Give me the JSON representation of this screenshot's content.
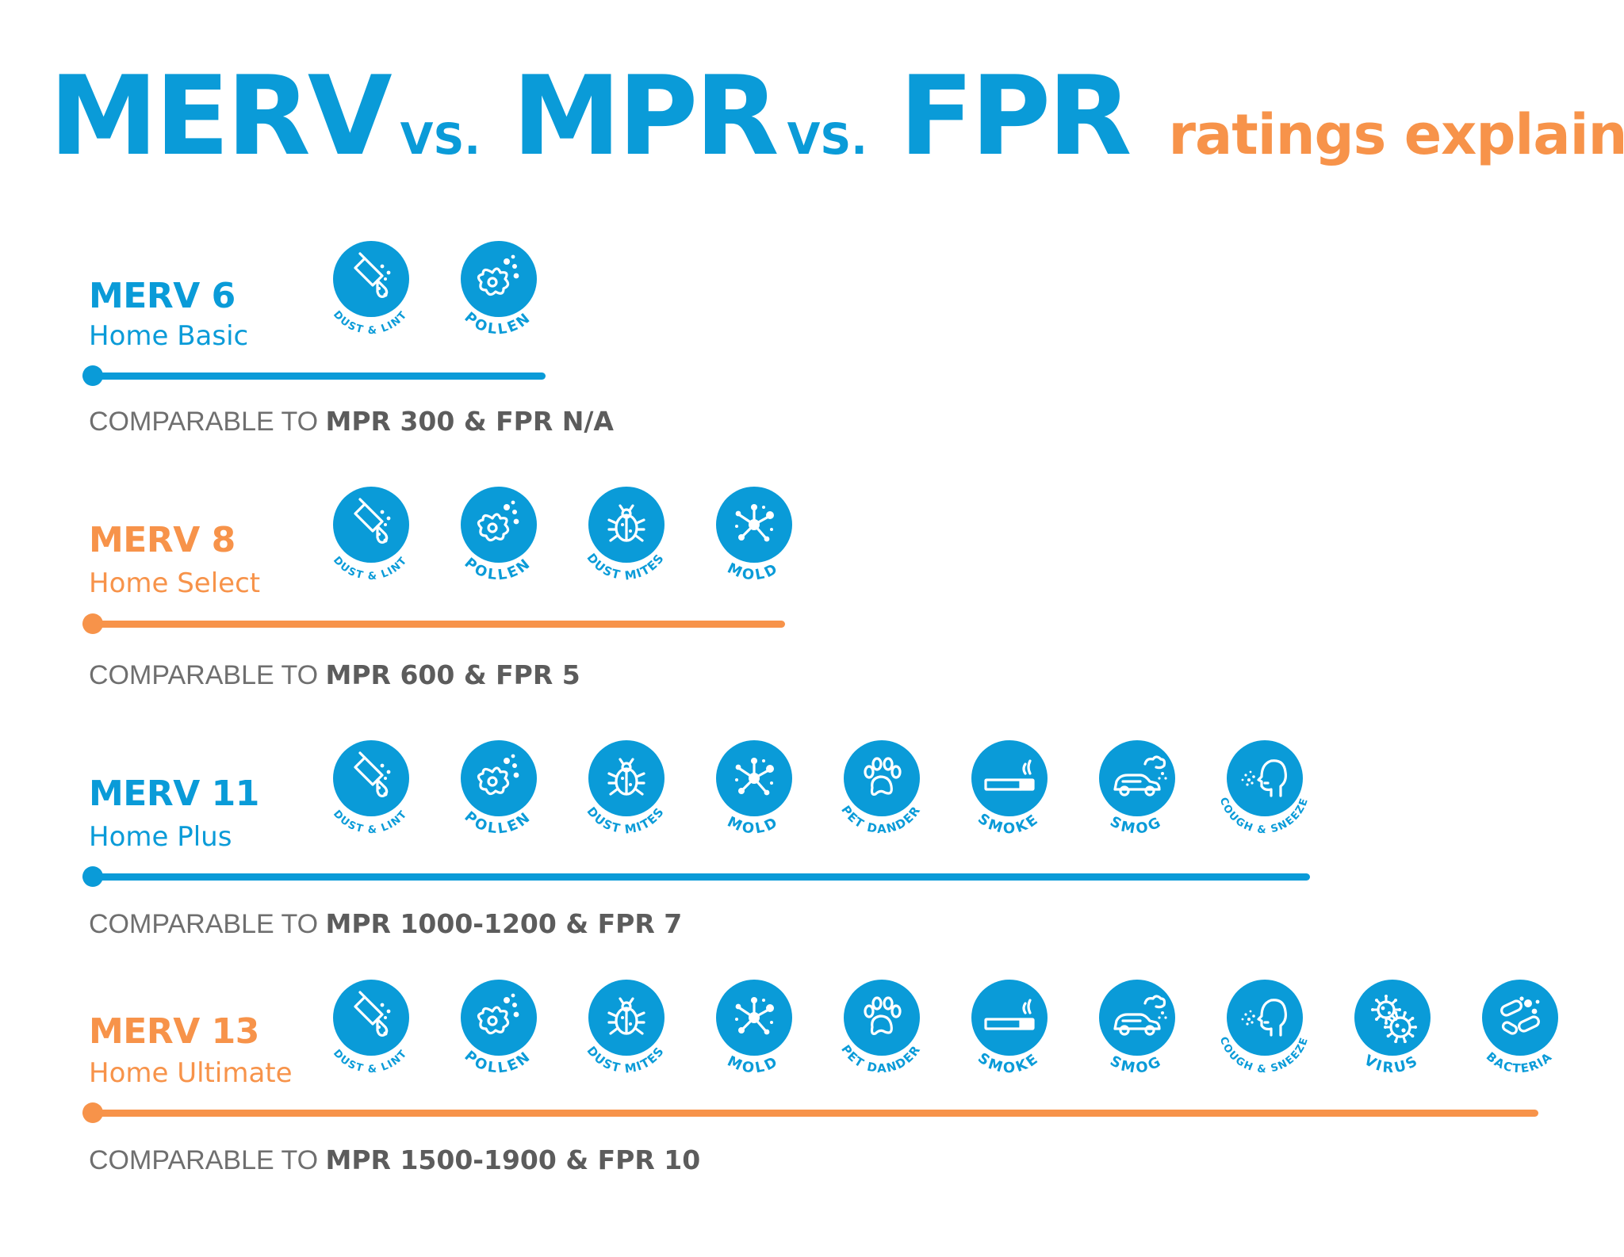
{
  "colors": {
    "blue": "#0a9bd8",
    "orange": "#f7934a",
    "gray": "#6f6f6f"
  },
  "title": {
    "word1": "MERV",
    "vs1": "VS.",
    "word2": "MPR",
    "vs2": "VS.",
    "word3": "FPR",
    "subtitle": "ratings explained"
  },
  "tiers": [
    {
      "name": "MERV 6",
      "label": "Home Basic",
      "color": "blue",
      "comparable_prefix": "COMPARABLE TO ",
      "comparable_value": "MPR 300 & FPR N/A",
      "icons": [
        {
          "icon": "dust-lint-icon",
          "label": "DUST & LINT"
        },
        {
          "icon": "pollen-icon",
          "label": "POLLEN"
        }
      ]
    },
    {
      "name": "MERV 8",
      "label": "Home Select",
      "color": "orange",
      "comparable_prefix": "COMPARABLE TO ",
      "comparable_value": "MPR 600 & FPR 5",
      "icons": [
        {
          "icon": "dust-lint-icon",
          "label": "DUST & LINT"
        },
        {
          "icon": "pollen-icon",
          "label": "POLLEN"
        },
        {
          "icon": "dust-mites-icon",
          "label": "DUST MITES"
        },
        {
          "icon": "mold-icon",
          "label": "MOLD"
        }
      ]
    },
    {
      "name": "MERV 11",
      "label": "Home Plus",
      "color": "blue",
      "comparable_prefix": "COMPARABLE TO ",
      "comparable_value": "MPR 1000-1200 & FPR 7",
      "icons": [
        {
          "icon": "dust-lint-icon",
          "label": "DUST & LINT"
        },
        {
          "icon": "pollen-icon",
          "label": "POLLEN"
        },
        {
          "icon": "dust-mites-icon",
          "label": "DUST MITES"
        },
        {
          "icon": "mold-icon",
          "label": "MOLD"
        },
        {
          "icon": "pet-dander-icon",
          "label": "PET DANDER"
        },
        {
          "icon": "smoke-icon",
          "label": "SMOKE"
        },
        {
          "icon": "smog-icon",
          "label": "SMOG"
        },
        {
          "icon": "cough-sneeze-icon",
          "label": "COUGH & SNEEZE"
        }
      ]
    },
    {
      "name": "MERV 13",
      "label": "Home Ultimate",
      "color": "orange",
      "comparable_prefix": "COMPARABLE TO ",
      "comparable_value": "MPR 1500-1900 & FPR 10",
      "icons": [
        {
          "icon": "dust-lint-icon",
          "label": "DUST & LINT"
        },
        {
          "icon": "pollen-icon",
          "label": "POLLEN"
        },
        {
          "icon": "dust-mites-icon",
          "label": "DUST MITES"
        },
        {
          "icon": "mold-icon",
          "label": "MOLD"
        },
        {
          "icon": "pet-dander-icon",
          "label": "PET DANDER"
        },
        {
          "icon": "smoke-icon",
          "label": "SMOKE"
        },
        {
          "icon": "smog-icon",
          "label": "SMOG"
        },
        {
          "icon": "cough-sneeze-icon",
          "label": "COUGH & SNEEZE"
        },
        {
          "icon": "virus-icon",
          "label": "VIRUS"
        },
        {
          "icon": "bacteria-icon",
          "label": "BACTERIA"
        }
      ]
    }
  ]
}
